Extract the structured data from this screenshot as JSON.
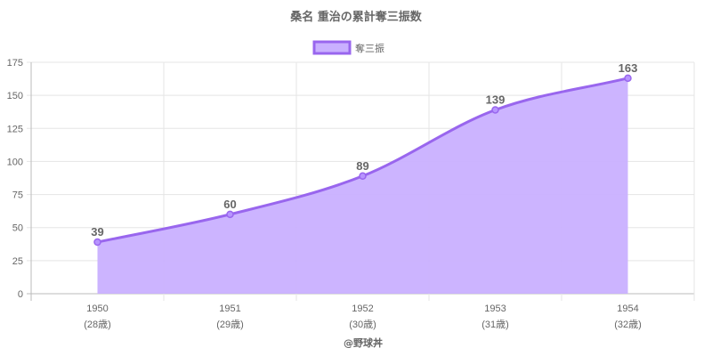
{
  "chart_data": {
    "type": "area",
    "title": "桑名 重治の累計奪三振数",
    "categories": [
      "1950",
      "1951",
      "1952",
      "1953",
      "1954"
    ],
    "category_sublabels": [
      "(28歳)",
      "(29歳)",
      "(30歳)",
      "(31歳)",
      "(32歳)"
    ],
    "series": [
      {
        "name": "奪三振",
        "values": [
          39,
          60,
          89,
          139,
          163
        ]
      }
    ],
    "ylim": [
      0,
      175
    ],
    "yticks": [
      0,
      25,
      50,
      75,
      100,
      125,
      150,
      175
    ],
    "grid": true,
    "legend_position": "top",
    "colors": {
      "line": "#9966ee",
      "fill": "#c9b0ff",
      "grid": "#e5e5e5",
      "text": "#666666"
    },
    "credit": "@野球丼"
  }
}
